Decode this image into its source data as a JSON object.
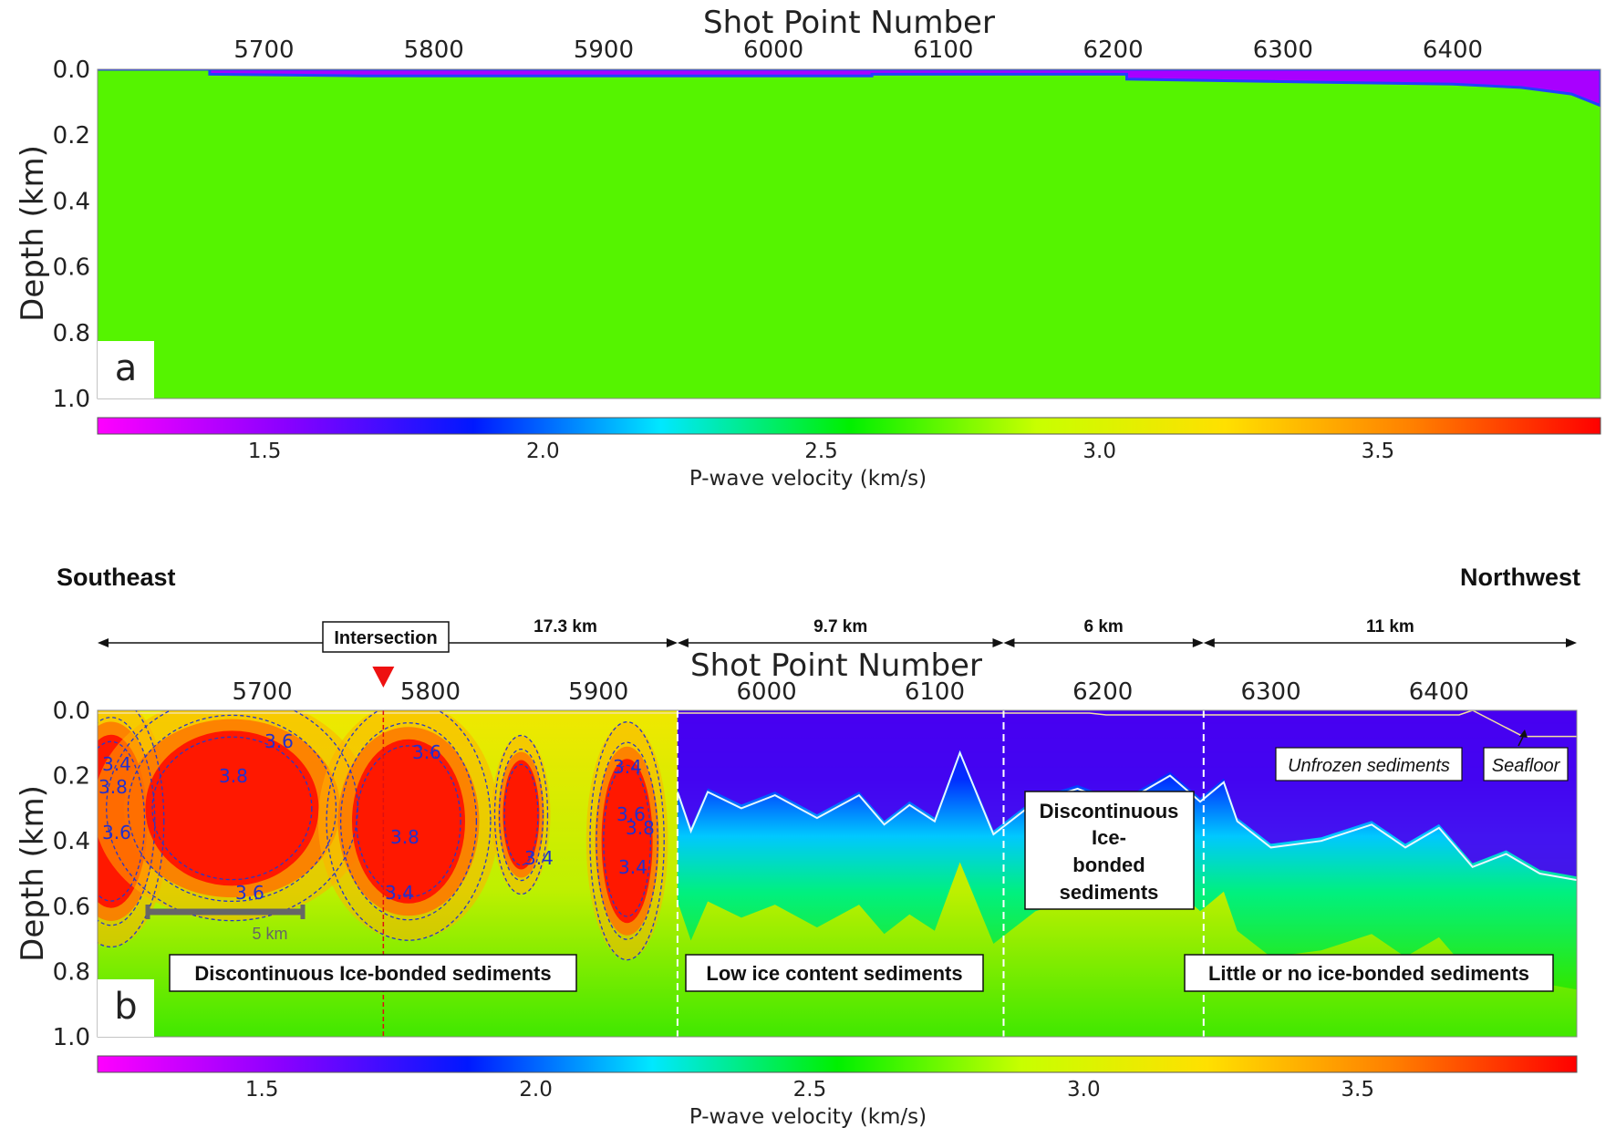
{
  "chart_data": [
    {
      "panel": "a",
      "type": "heatmap",
      "title": "",
      "x_axis_top_label": "Shot Point Number",
      "ylabel": "Depth (km)",
      "x_ticks": [
        5700,
        5800,
        5900,
        6000,
        6100,
        6200,
        6300,
        6400
      ],
      "y_ticks": [
        "0.0",
        "0.2",
        "0.4",
        "0.6",
        "0.8",
        "1.0"
      ],
      "xlim": [
        5602,
        6487
      ],
      "ylim": [
        0.0,
        1.0
      ],
      "colorbar": {
        "label": "P-wave velocity (km/s)",
        "ticks": [
          "1.5",
          "2.0",
          "2.5",
          "3.0",
          "3.5"
        ],
        "range": [
          1.2,
          3.9
        ],
        "colors": [
          "#ff00ff",
          "#8a00ff",
          "#0018ff",
          "#00e8ff",
          "#00f000",
          "#c8ff00",
          "#ffe000",
          "#ff8000",
          "#ff0000"
        ]
      },
      "background_velocity_kms": 2.9,
      "water_layer_velocity_kms": 1.45,
      "seafloor_profile": {
        "shot_points": [
          5602,
          5668,
          5668,
          5758,
          5878,
          6058,
          6058,
          6208,
          6208,
          6330,
          6400,
          6440,
          6470,
          6487
        ],
        "depth_km": [
          0.0,
          0.0,
          0.015,
          0.02,
          0.02,
          0.02,
          0.015,
          0.015,
          0.03,
          0.04,
          0.045,
          0.055,
          0.075,
          0.11
        ]
      }
    },
    {
      "panel": "b",
      "type": "heatmap",
      "title": "",
      "x_axis_top_label": "Shot Point Number",
      "ylabel": "Depth (km)",
      "x_ticks": [
        5700,
        5800,
        5900,
        6000,
        6100,
        6200,
        6300,
        6400
      ],
      "y_ticks": [
        "0.0",
        "0.2",
        "0.4",
        "0.6",
        "0.8",
        "1.0"
      ],
      "xlim": [
        5602,
        6482
      ],
      "ylim": [
        0.0,
        1.0
      ],
      "colorbar": {
        "label": "P-wave velocity (km/s)",
        "ticks": [
          "1.5",
          "2.0",
          "2.5",
          "3.0",
          "3.5"
        ],
        "range": [
          1.2,
          3.9
        ]
      },
      "contour_labels": [
        "3.4",
        "3.6",
        "3.8",
        "3.6",
        "3.4",
        "3.6",
        "3.8",
        "3.4",
        "3.4",
        "3.6",
        "3.8",
        "3.4",
        "3.6",
        "3.8"
      ],
      "high_velocity_bodies": [
        {
          "shot_point": 5610,
          "depth_km": 0.34,
          "peak_kms": 3.8
        },
        {
          "shot_point": 5682,
          "depth_km": 0.3,
          "peak_kms": 3.85
        },
        {
          "shot_point": 5787,
          "depth_km": 0.34,
          "peak_kms": 3.85
        },
        {
          "shot_point": 5854,
          "depth_km": 0.32,
          "peak_kms": 3.55
        },
        {
          "shot_point": 5917,
          "depth_km": 0.4,
          "peak_kms": 3.75
        }
      ],
      "white_contour_2_5": {
        "shot_points": [
          5947,
          5955,
          5965,
          5985,
          6005,
          6030,
          6055,
          6070,
          6085,
          6100,
          6115,
          6135,
          6160,
          6185,
          6200,
          6220,
          6240,
          6258,
          6272,
          6280,
          6300,
          6330,
          6360,
          6380,
          6400,
          6420,
          6440,
          6460,
          6482
        ],
        "depth_km": [
          0.25,
          0.37,
          0.25,
          0.3,
          0.26,
          0.33,
          0.26,
          0.35,
          0.29,
          0.34,
          0.13,
          0.38,
          0.28,
          0.24,
          0.27,
          0.26,
          0.2,
          0.28,
          0.22,
          0.34,
          0.42,
          0.4,
          0.35,
          0.42,
          0.36,
          0.48,
          0.44,
          0.5,
          0.52
        ]
      },
      "seafloor_shot_points": [
        6420,
        6450,
        6482
      ],
      "seafloor_depth_km": [
        0.0,
        0.08,
        0.08
      ],
      "intersection_shot_point": 5772,
      "boundaries_shot_points": [
        5947,
        6141,
        6260
      ],
      "segments": [
        {
          "label": "17.3 km",
          "from_shot": 5602,
          "to_shot": 5947
        },
        {
          "label": "9.7 km",
          "from_shot": 5947,
          "to_shot": 6141
        },
        {
          "label": "6 km",
          "from_shot": 6141,
          "to_shot": 6260
        },
        {
          "label": "11 km",
          "from_shot": 6260,
          "to_shot": 6482
        }
      ],
      "scale_bar_label": "5 km",
      "direction_left": "Southeast",
      "direction_right": "Northwest",
      "intersection_label": "Intersection",
      "annotations": [
        "Discontinuous Ice-bonded sediments",
        "Low ice content sediments",
        "Little or no ice-bonded sediments",
        "Unfrozen sediments",
        "Seafloor"
      ],
      "mid_annotation_lines": [
        "Discontinuous",
        "Ice-",
        "bonded",
        "sediments"
      ]
    }
  ],
  "panel_labels": [
    "a",
    "b"
  ]
}
